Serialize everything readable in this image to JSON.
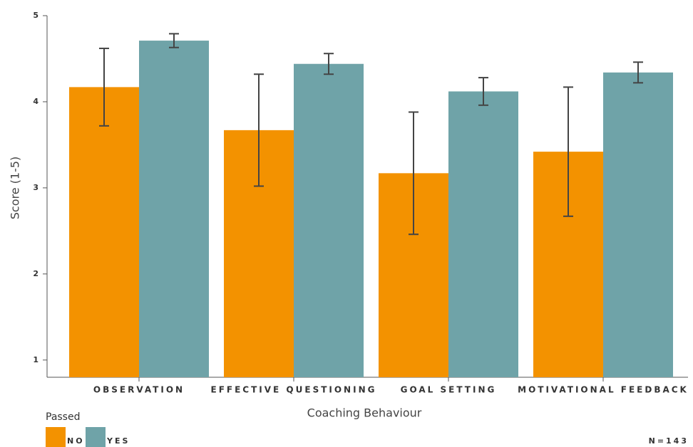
{
  "chart_data": {
    "type": "bar",
    "x_label": "Coaching Behaviour",
    "y_label": "Score (1-5)",
    "legend_title": "Passed",
    "note": "N=143",
    "categories": [
      "OBSERVATION",
      "EFFECTIVE QUESTIONING",
      "GOAL SETTING",
      "MOTIVATIONAL FEEDBACK"
    ],
    "series": [
      {
        "name": "NO",
        "color": "#f39200",
        "values": [
          4.17,
          3.67,
          3.17,
          3.42
        ],
        "errors": [
          0.45,
          0.65,
          0.71,
          0.75
        ]
      },
      {
        "name": "YES",
        "color": "#6fa3a8",
        "values": [
          4.71,
          4.44,
          4.12,
          4.34
        ],
        "errors": [
          0.08,
          0.12,
          0.16,
          0.12
        ]
      }
    ],
    "ylim": [
      0.8,
      5
    ],
    "yticks": [
      1,
      2,
      3,
      4,
      5
    ],
    "legend": "bottom-left"
  }
}
